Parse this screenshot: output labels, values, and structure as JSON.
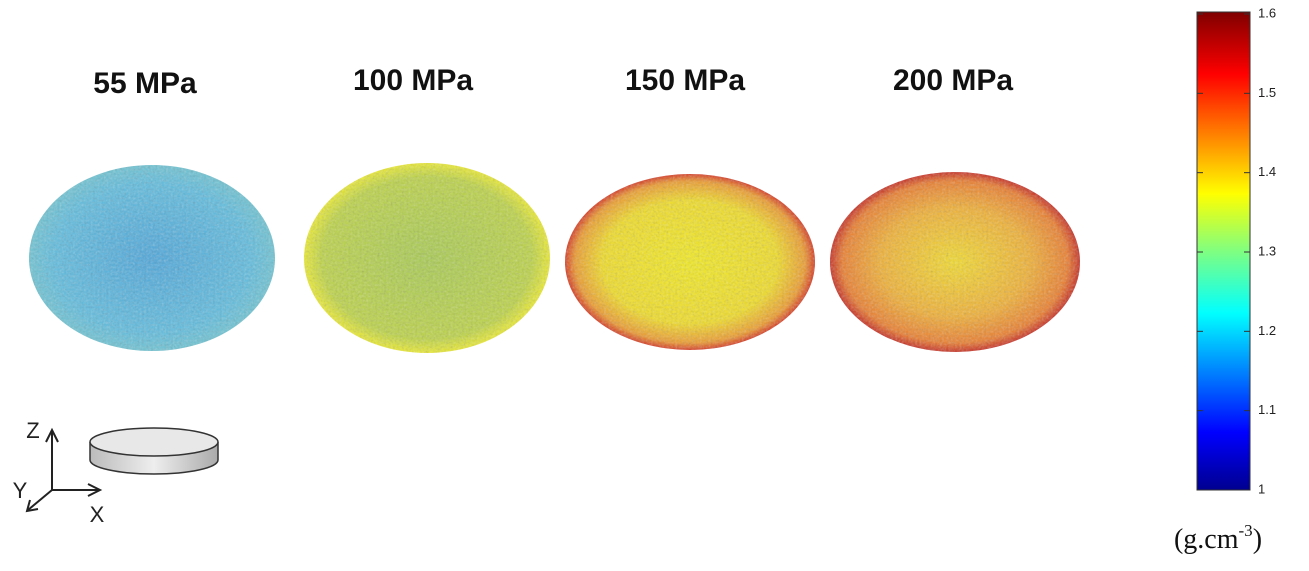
{
  "panels": [
    {
      "title": "55 MPa"
    },
    {
      "title": "100 MPa"
    },
    {
      "title": "150 MPa"
    },
    {
      "title": "200 MPa"
    }
  ],
  "axes": {
    "z": "Z",
    "y": "Y",
    "x": "X"
  },
  "colorbar": {
    "lim": [
      1,
      1.6
    ],
    "ticks": [
      1,
      1.1,
      1.2,
      1.3,
      1.4,
      1.5,
      1.6
    ],
    "unit": {
      "base": "(g.cm",
      "exp": "-3",
      "close": ")"
    }
  }
}
